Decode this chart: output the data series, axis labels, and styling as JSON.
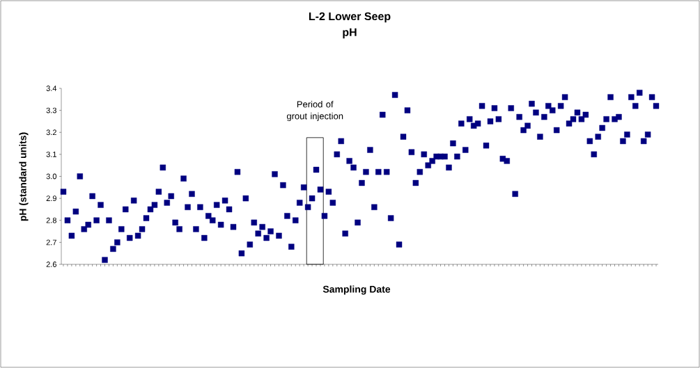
{
  "chart_data": {
    "type": "scatter",
    "title": "L-2 Lower Seep",
    "subtitle": "pH",
    "xlabel": "Sampling Date",
    "ylabel": "pH (standard units)",
    "categories": [
      null,
      null,
      null,
      null,
      null,
      null,
      null,
      null,
      null,
      null,
      null,
      null,
      null,
      null,
      null,
      null,
      null,
      null,
      null,
      null,
      null,
      null,
      null,
      null,
      null,
      null,
      null,
      null,
      null,
      null,
      null,
      null,
      null,
      null,
      null,
      null,
      null,
      null,
      null,
      null,
      null,
      null,
      null,
      null,
      null,
      null,
      null,
      null,
      null,
      null,
      null,
      null,
      null,
      null,
      null,
      null,
      null,
      null,
      null,
      null,
      null,
      null,
      null,
      null,
      null,
      null,
      null,
      null,
      null,
      null,
      null,
      null,
      null,
      null,
      null,
      null,
      null,
      null,
      null,
      null,
      null,
      null,
      null,
      null,
      null,
      null,
      null,
      null,
      null,
      null,
      null,
      null,
      null,
      null,
      null,
      null,
      null,
      null,
      null,
      null,
      null,
      null,
      null,
      null,
      null,
      null,
      null,
      null,
      null,
      null,
      null,
      null,
      null,
      null,
      null,
      null,
      null,
      null,
      null,
      null,
      null,
      null,
      null,
      null,
      null,
      null,
      null,
      null,
      null,
      null,
      null,
      null,
      null,
      null,
      null,
      null,
      null,
      null,
      null,
      null,
      null,
      null,
      null,
      null
    ],
    "values": [
      2.93,
      2.8,
      2.73,
      2.84,
      3.0,
      2.76,
      2.78,
      2.91,
      2.8,
      2.87,
      2.62,
      2.8,
      2.67,
      2.7,
      2.76,
      2.85,
      2.72,
      2.89,
      2.73,
      2.76,
      2.81,
      2.85,
      2.87,
      2.93,
      3.04,
      2.88,
      2.91,
      2.79,
      2.76,
      2.99,
      2.86,
      2.92,
      2.76,
      2.86,
      2.72,
      2.82,
      2.8,
      2.87,
      2.78,
      2.89,
      2.85,
      2.77,
      3.02,
      2.65,
      2.9,
      2.69,
      2.79,
      2.74,
      2.77,
      2.72,
      2.75,
      3.01,
      2.73,
      2.96,
      2.82,
      2.68,
      2.8,
      2.88,
      2.95,
      2.86,
      2.9,
      3.03,
      2.94,
      2.82,
      2.93,
      2.88,
      3.1,
      3.16,
      2.74,
      3.07,
      3.04,
      2.79,
      2.97,
      3.02,
      3.12,
      2.86,
      3.02,
      3.28,
      3.02,
      2.81,
      3.37,
      2.69,
      3.18,
      3.3,
      3.11,
      2.97,
      3.02,
      3.1,
      3.05,
      3.07,
      3.09,
      3.09,
      3.09,
      3.04,
      3.15,
      3.09,
      3.24,
      3.12,
      3.26,
      3.23,
      3.24,
      3.32,
      3.14,
      3.25,
      3.31,
      3.26,
      3.08,
      3.07,
      3.31,
      2.92,
      3.27,
      3.21,
      3.23,
      3.33,
      3.29,
      3.18,
      3.27,
      3.32,
      3.3,
      3.21,
      3.32,
      3.36,
      3.24,
      3.26,
      3.29,
      3.26,
      3.28,
      3.16,
      3.1,
      3.18,
      3.22,
      3.26,
      3.36,
      3.26,
      3.27,
      3.16,
      3.19,
      3.36,
      3.32,
      3.38,
      3.16,
      3.19,
      3.36,
      3.32
    ],
    "color": "#000080",
    "marker": "square",
    "ylim": [
      2.6,
      3.4
    ],
    "yticks": [
      2.6,
      2.7,
      2.8,
      2.9,
      {
        "value": 3,
        "label": "3.0"
      },
      3.1,
      3.2,
      3.3,
      3.4
    ],
    "tick_labels": "y",
    "grid": false,
    "annotations": [
      "Period of grout injection"
    ]
  }
}
